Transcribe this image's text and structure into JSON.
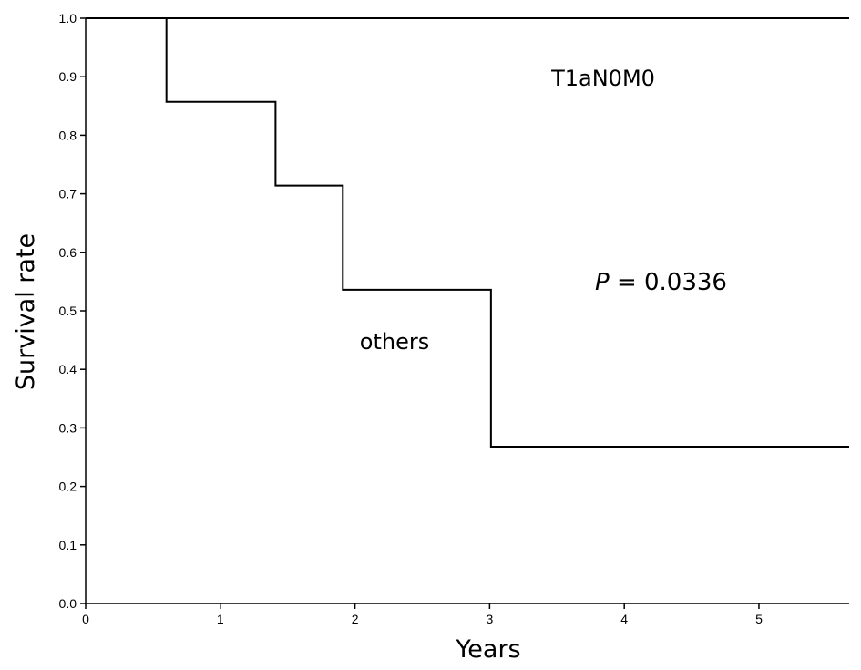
{
  "chart_data": {
    "type": "line",
    "title": "",
    "xlabel": "Years",
    "ylabel": "Survival rate",
    "xlim": [
      0,
      5.67
    ],
    "ylim": [
      0,
      1.0
    ],
    "x_ticks": [
      0,
      1,
      2,
      3,
      4,
      5
    ],
    "y_ticks": [
      "0.0",
      "0.1",
      "0.2",
      "0.3",
      "0.4",
      "0.5",
      "0.6",
      "0.7",
      "0.8",
      "0.9",
      "1.0"
    ],
    "grid": false,
    "series": [
      {
        "name": "T1aN0M0",
        "step": true,
        "points": [
          [
            0,
            1.0
          ],
          [
            5.67,
            1.0
          ]
        ]
      },
      {
        "name": "others",
        "step": true,
        "points": [
          [
            0,
            1.0
          ],
          [
            0.6,
            0.857
          ],
          [
            1.41,
            0.714
          ],
          [
            1.91,
            0.536
          ],
          [
            3.01,
            0.268
          ],
          [
            5.67,
            0.268
          ]
        ]
      }
    ],
    "annotations": {
      "t1a_label": "T1aN0M0",
      "others_label": "others",
      "p_symbol": "P",
      "p_rest": " = 0.0336"
    },
    "colors": {
      "line": "#000000",
      "background": "#ffffff"
    }
  }
}
